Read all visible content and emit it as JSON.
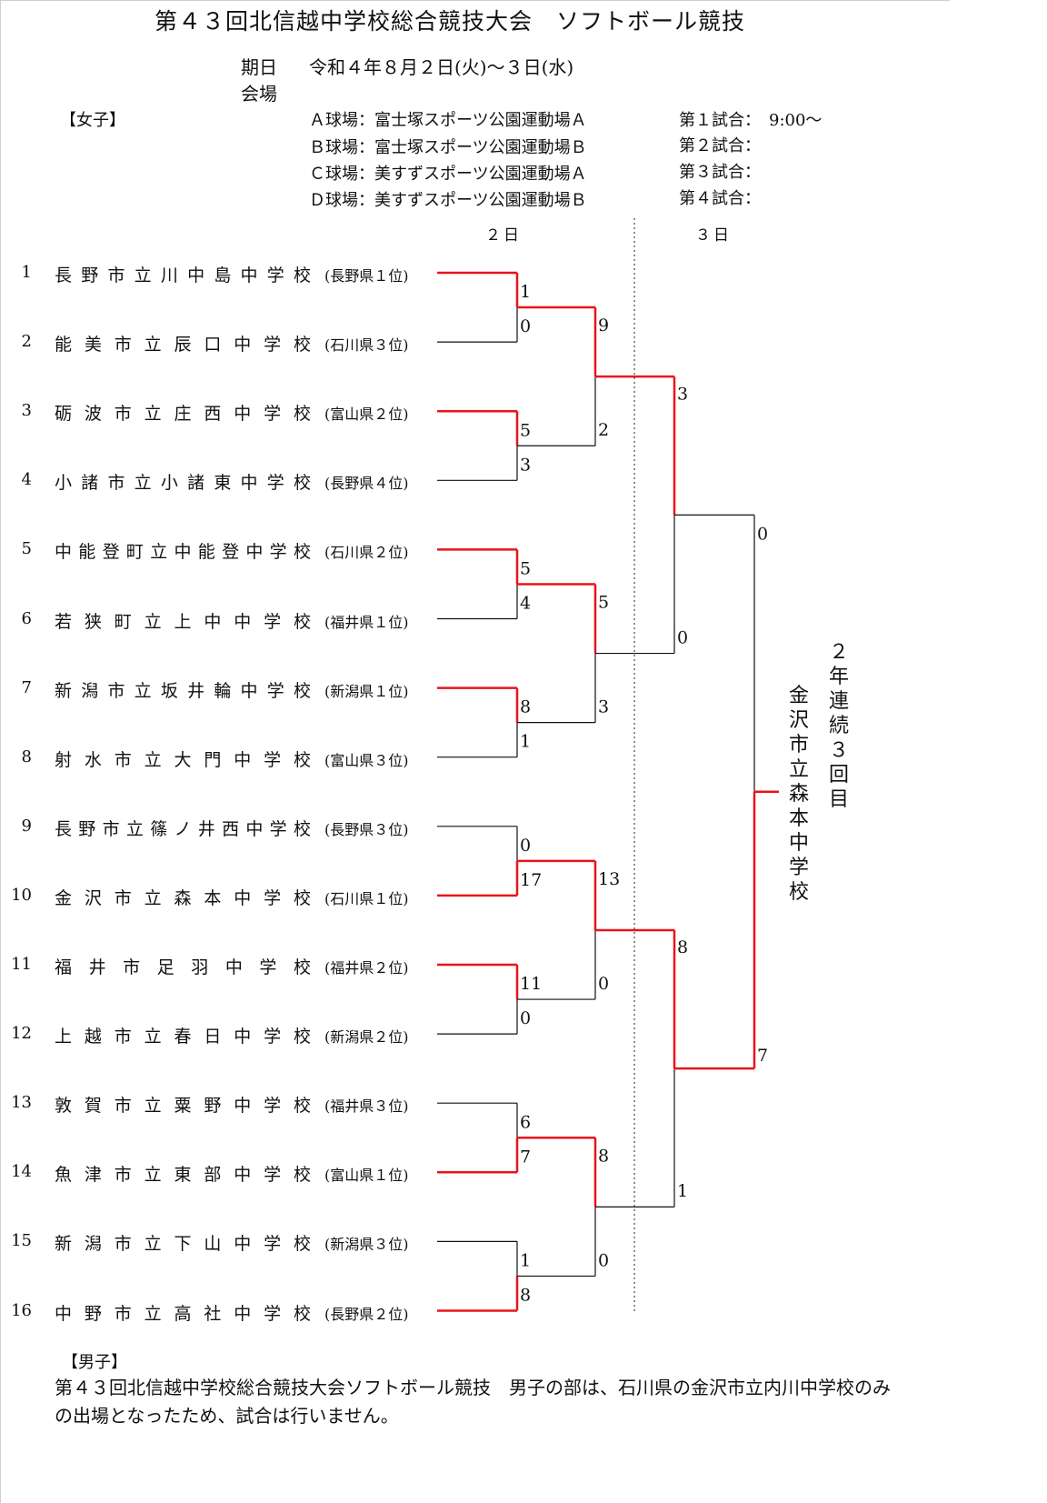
{
  "title": "第４３回北信越中学校総合競技大会　ソフトボール競技",
  "schedule": {
    "date_label": "期日",
    "date_value": "令和４年８月２日(火)～３日(水)",
    "venue_label": "会場"
  },
  "women_label": "【女子】",
  "venues": [
    "Ａ球場：富士塚スポーツ公園運動場Ａ",
    "Ｂ球場：富士塚スポーツ公園運動場Ｂ",
    "Ｃ球場：美すずスポーツ公園運動場Ａ",
    "Ｄ球場：美すずスポーツ公園運動場Ｂ"
  ],
  "games": [
    "第１試合：　9:00～",
    "第２試合：",
    "第３試合：",
    "第４試合："
  ],
  "days": [
    "２日",
    "３日"
  ],
  "teams": [
    {
      "no": "1",
      "school": "長野市立川中島中学校",
      "pref": "(長野県１位)"
    },
    {
      "no": "2",
      "school": "能美市立辰口中学校",
      "pref": "(石川県３位)"
    },
    {
      "no": "3",
      "school": "砺波市立庄西中学校",
      "pref": "(富山県２位)"
    },
    {
      "no": "4",
      "school": "小諸市立小諸東中学校",
      "pref": "(長野県４位)"
    },
    {
      "no": "5",
      "school": "中能登町立中能登中学校",
      "pref": "(石川県２位)"
    },
    {
      "no": "6",
      "school": "若狭町立上中中学校",
      "pref": "(福井県１位)"
    },
    {
      "no": "7",
      "school": "新潟市立坂井輪中学校",
      "pref": "(新潟県１位)"
    },
    {
      "no": "8",
      "school": "射水市立大門中学校",
      "pref": "(富山県３位)"
    },
    {
      "no": "9",
      "school": "長野市立篠ノ井西中学校",
      "pref": "(長野県３位)"
    },
    {
      "no": "10",
      "school": "金沢市立森本中学校",
      "pref": "(石川県１位)"
    },
    {
      "no": "11",
      "school": "福井市足羽中学校",
      "pref": "(福井県２位)"
    },
    {
      "no": "12",
      "school": "上越市立春日中学校",
      "pref": "(新潟県２位)"
    },
    {
      "no": "13",
      "school": "敦賀市立粟野中学校",
      "pref": "(福井県３位)"
    },
    {
      "no": "14",
      "school": "魚津市立東部中学校",
      "pref": "(富山県１位)"
    },
    {
      "no": "15",
      "school": "新潟市立下山中学校",
      "pref": "(新潟県３位)"
    },
    {
      "no": "16",
      "school": "中野市立高社中学校",
      "pref": "(長野県２位)"
    }
  ],
  "scores": {
    "round1": [
      [
        "1",
        "0"
      ],
      [
        "5",
        "3"
      ],
      [
        "5",
        "4"
      ],
      [
        "8",
        "1"
      ],
      [
        "0",
        "17"
      ],
      [
        "11",
        "0"
      ],
      [
        "6",
        "7"
      ],
      [
        "1",
        "8"
      ]
    ],
    "round2": [
      [
        "9",
        "2"
      ],
      [
        "5",
        "3"
      ],
      [
        "13",
        "0"
      ],
      [
        "8",
        "0"
      ]
    ],
    "semifinal": [
      [
        "3",
        "0"
      ],
      [
        "8",
        "1"
      ]
    ],
    "final": [
      "0",
      "7"
    ]
  },
  "champion": {
    "school": "金沢市立森本中学校",
    "note": "２年連続３回目"
  },
  "men": {
    "label": "【男子】",
    "text": "第４３回北信越中学校総合競技大会ソフトボール競技　男子の部は、石川県の金沢市立内川中学校のみの出場となったため、試合は行いません。"
  },
  "colors": {
    "winner_line": "#e8141c",
    "line": "#111111"
  }
}
